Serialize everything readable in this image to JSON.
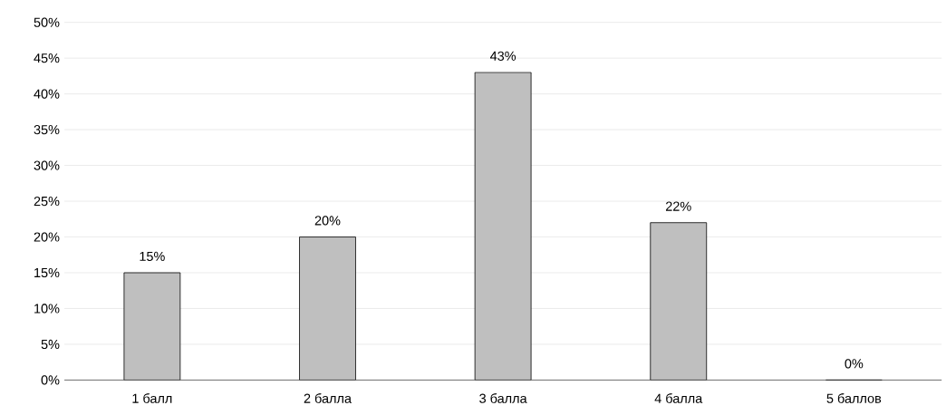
{
  "chart_data": {
    "type": "bar",
    "categories": [
      "1 балл",
      "2 балла",
      "3 балла",
      "4 балла",
      "5 баллов"
    ],
    "values": [
      15,
      20,
      43,
      22,
      0
    ],
    "value_labels": [
      "15%",
      "20%",
      "43%",
      "22%",
      "0%"
    ],
    "color": "#bfbfbf",
    "ylim": [
      0,
      50
    ],
    "yticks": [
      {
        "value": 0,
        "label": "0%"
      },
      {
        "value": 5,
        "label": "5%"
      },
      {
        "value": 10,
        "label": "10%"
      },
      {
        "value": 15,
        "label": "15%"
      },
      {
        "value": 20,
        "label": "20%"
      },
      {
        "value": 25,
        "label": "25%"
      },
      {
        "value": 30,
        "label": "30%"
      },
      {
        "value": 35,
        "label": "35%"
      },
      {
        "value": 40,
        "label": "40%"
      },
      {
        "value": 45,
        "label": "45%"
      },
      {
        "value": 50,
        "label": "50%"
      }
    ],
    "grid": "y"
  }
}
